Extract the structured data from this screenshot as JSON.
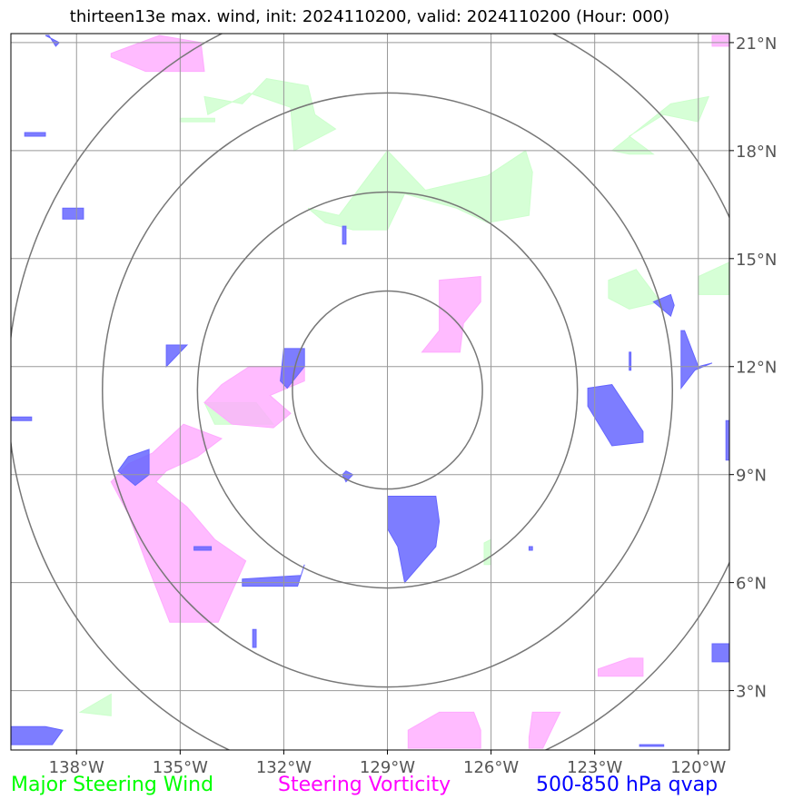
{
  "title": "thirteen13e max. wind, init: 2024110200, valid: 2024110200 (Hour: 000)",
  "legend": [
    {
      "label": "Major Steering Wind",
      "color": "#00ff00"
    },
    {
      "label": "Steering Vorticity",
      "color": "#ff00ff"
    },
    {
      "label": "500-850 hPa qvap",
      "color": "#0000ff"
    }
  ],
  "colors": {
    "wind_fill": "#ccffcc",
    "vorticity_fill": "#ffaaff",
    "qvap_fill": "#6666ff",
    "grid": "#999999",
    "range_ring": "#777777"
  },
  "chart_data": {
    "type": "map",
    "projection": "plate carree",
    "xlim": [
      -139.9,
      -119.1
    ],
    "ylim": [
      1.35,
      21.25
    ],
    "x_ticks": [
      -138,
      -135,
      -132,
      -129,
      -126,
      -123,
      -120
    ],
    "x_tick_labels": [
      "138°W",
      "135°W",
      "132°W",
      "129°W",
      "126°W",
      "123°W",
      "120°W"
    ],
    "y_ticks": [
      3,
      6,
      9,
      12,
      15,
      18,
      21
    ],
    "y_tick_labels": [
      "3°N",
      "6°N",
      "9°N",
      "12°N",
      "15°N",
      "18°N",
      "21°N"
    ],
    "grid": true,
    "storm_center": {
      "lon": -129.0,
      "lat": 11.35
    },
    "range_rings_deg": [
      2.75,
      5.5,
      8.25,
      11.0
    ],
    "series": [
      {
        "name": "Major Steering Wind",
        "regions": [
          [
            [
              -134.3,
              19.5
            ],
            [
              -133.2,
              19.3
            ],
            [
              -132.5,
              20.0
            ],
            [
              -131.3,
              19.8
            ],
            [
              -131.1,
              19.0
            ],
            [
              -130.5,
              18.6
            ],
            [
              -131.7,
              18.0
            ],
            [
              -131.8,
              19.2
            ],
            [
              -133.0,
              19.6
            ],
            [
              -134.2,
              19.0
            ]
          ],
          [
            [
              -135.0,
              18.9
            ],
            [
              -134.0,
              18.9
            ],
            [
              -134.0,
              18.8
            ],
            [
              -135.0,
              18.8
            ]
          ],
          [
            [
              -131.3,
              16.4
            ],
            [
              -130.4,
              16.2
            ],
            [
              -129.0,
              18.0
            ],
            [
              -127.9,
              16.9
            ],
            [
              -126.1,
              17.3
            ],
            [
              -125.0,
              18.0
            ],
            [
              -124.8,
              17.4
            ],
            [
              -124.9,
              16.2
            ],
            [
              -126.1,
              16.0
            ],
            [
              -127.0,
              16.4
            ],
            [
              -128.5,
              16.8
            ],
            [
              -129.0,
              15.8
            ],
            [
              -130.0,
              15.8
            ],
            [
              -130.8,
              16.0
            ]
          ],
          [
            [
              -122.5,
              18.0
            ],
            [
              -120.8,
              19.3
            ],
            [
              -119.7,
              19.5
            ],
            [
              -120.0,
              18.8
            ],
            [
              -121.0,
              19.0
            ],
            [
              -122.0,
              18.4
            ],
            [
              -121.3,
              17.9
            ],
            [
              -122.0,
              17.9
            ]
          ],
          [
            [
              -122.6,
              14.4
            ],
            [
              -121.8,
              14.7
            ],
            [
              -121.1,
              13.8
            ],
            [
              -122.0,
              13.6
            ],
            [
              -122.6,
              13.9
            ]
          ],
          [
            [
              -120.0,
              14.5
            ],
            [
              -119.1,
              14.9
            ],
            [
              -119.1,
              14.0
            ],
            [
              -120.0,
              14.0
            ]
          ],
          [
            [
              -134.3,
              11.0
            ],
            [
              -132.8,
              11.0
            ],
            [
              -132.3,
              10.4
            ],
            [
              -134.0,
              10.4
            ]
          ],
          [
            [
              -137.9,
              2.4
            ],
            [
              -137.0,
              2.9
            ],
            [
              -137.0,
              2.3
            ]
          ],
          [
            [
              -126.2,
              7.1
            ],
            [
              -126.0,
              7.2
            ],
            [
              -126.0,
              6.5
            ],
            [
              -126.2,
              6.5
            ]
          ]
        ]
      },
      {
        "name": "Steering Vorticity",
        "regions": [
          [
            [
              -137.0,
              20.7
            ],
            [
              -135.6,
              21.2
            ],
            [
              -134.4,
              21.0
            ],
            [
              -134.3,
              20.2
            ],
            [
              -136.0,
              20.2
            ],
            [
              -137.0,
              20.6
            ]
          ],
          [
            [
              -119.6,
              21.2
            ],
            [
              -119.1,
              21.2
            ],
            [
              -119.1,
              20.9
            ],
            [
              -119.6,
              20.9
            ]
          ],
          [
            [
              -127.5,
              13.0
            ],
            [
              -127.5,
              14.4
            ],
            [
              -126.3,
              14.5
            ],
            [
              -126.3,
              13.8
            ],
            [
              -126.8,
              13.2
            ],
            [
              -126.9,
              12.4
            ],
            [
              -128.0,
              12.4
            ]
          ],
          [
            [
              -133.0,
              12.0
            ],
            [
              -131.4,
              12.0
            ],
            [
              -131.4,
              11.6
            ],
            [
              -132.4,
              11.2
            ],
            [
              -131.8,
              10.7
            ],
            [
              -132.3,
              10.3
            ],
            [
              -133.5,
              10.4
            ],
            [
              -134.3,
              11.0
            ],
            [
              -133.8,
              11.5
            ]
          ],
          [
            [
              -134.9,
              10.4
            ],
            [
              -133.8,
              10.0
            ],
            [
              -134.5,
              9.5
            ],
            [
              -135.4,
              9.1
            ],
            [
              -135.7,
              8.8
            ],
            [
              -134.8,
              8.1
            ],
            [
              -134.0,
              7.2
            ],
            [
              -133.1,
              6.6
            ],
            [
              -133.9,
              4.9
            ],
            [
              -135.3,
              4.9
            ],
            [
              -136.0,
              6.6
            ],
            [
              -136.5,
              7.9
            ],
            [
              -137.0,
              8.8
            ],
            [
              -136.5,
              9.3
            ],
            [
              -135.8,
              9.6
            ]
          ],
          [
            [
              -122.9,
              3.6
            ],
            [
              -122.0,
              3.9
            ],
            [
              -121.6,
              3.9
            ],
            [
              -121.6,
              3.4
            ],
            [
              -122.9,
              3.4
            ]
          ],
          [
            [
              -128.4,
              1.9
            ],
            [
              -127.5,
              2.4
            ],
            [
              -126.5,
              2.4
            ],
            [
              -126.3,
              1.9
            ],
            [
              -126.3,
              1.4
            ],
            [
              -128.4,
              1.4
            ]
          ],
          [
            [
              -124.9,
              1.7
            ],
            [
              -124.8,
              2.4
            ],
            [
              -124.0,
              2.4
            ],
            [
              -124.5,
              1.4
            ],
            [
              -124.9,
              1.4
            ]
          ]
        ]
      },
      {
        "name": "500-850 hPa qvap",
        "regions": [
          [
            [
              -138.9,
              21.2
            ],
            [
              -138.5,
              21.0
            ],
            [
              -138.6,
              20.9
            ],
            [
              -138.8,
              21.2
            ]
          ],
          [
            [
              -139.5,
              18.5
            ],
            [
              -138.9,
              18.5
            ],
            [
              -138.9,
              18.4
            ],
            [
              -139.5,
              18.4
            ]
          ],
          [
            [
              -138.4,
              16.4
            ],
            [
              -137.8,
              16.4
            ],
            [
              -137.8,
              16.1
            ],
            [
              -138.4,
              16.1
            ]
          ],
          [
            [
              -135.4,
              12.6
            ],
            [
              -134.8,
              12.6
            ],
            [
              -135.4,
              12.0
            ]
          ],
          [
            [
              -132.0,
              12.5
            ],
            [
              -131.4,
              12.5
            ],
            [
              -131.4,
              12.0
            ],
            [
              -131.9,
              11.4
            ],
            [
              -132.1,
              11.6
            ]
          ],
          [
            [
              -130.3,
              15.9
            ],
            [
              -130.2,
              15.9
            ],
            [
              -130.2,
              15.4
            ],
            [
              -130.3,
              15.4
            ]
          ],
          [
            [
              -121.3,
              13.8
            ],
            [
              -120.8,
              14.0
            ],
            [
              -120.7,
              13.7
            ],
            [
              -120.8,
              13.4
            ]
          ],
          [
            [
              -120.5,
              13.0
            ],
            [
              -120.4,
              13.0
            ],
            [
              -120.0,
              12.0
            ],
            [
              -119.6,
              12.1
            ],
            [
              -120.1,
              11.9
            ],
            [
              -120.5,
              11.4
            ]
          ],
          [
            [
              -123.2,
              11.4
            ],
            [
              -122.5,
              11.5
            ],
            [
              -121.6,
              10.2
            ],
            [
              -121.6,
              9.9
            ],
            [
              -122.5,
              9.8
            ],
            [
              -123.2,
              10.9
            ]
          ],
          [
            [
              -136.5,
              9.5
            ],
            [
              -135.9,
              9.7
            ],
            [
              -135.9,
              9.0
            ],
            [
              -136.3,
              8.7
            ],
            [
              -136.8,
              9.1
            ]
          ],
          [
            [
              -129.0,
              8.4
            ],
            [
              -127.6,
              8.4
            ],
            [
              -127.5,
              7.7
            ],
            [
              -127.6,
              7.0
            ],
            [
              -128.5,
              6.0
            ],
            [
              -128.7,
              7.0
            ],
            [
              -129.0,
              7.5
            ]
          ],
          [
            [
              -130.2,
              9.1
            ],
            [
              -130.0,
              9.0
            ],
            [
              -130.2,
              8.8
            ],
            [
              -130.3,
              9.0
            ]
          ],
          [
            [
              -133.2,
              6.1
            ],
            [
              -131.5,
              6.2
            ],
            [
              -131.4,
              6.5
            ],
            [
              -131.6,
              5.9
            ],
            [
              -133.2,
              5.9
            ]
          ],
          [
            [
              -134.6,
              7.0
            ],
            [
              -134.1,
              7.0
            ],
            [
              -134.1,
              6.9
            ],
            [
              -134.6,
              6.9
            ]
          ],
          [
            [
              -132.9,
              4.7
            ],
            [
              -132.8,
              4.7
            ],
            [
              -132.8,
              4.2
            ],
            [
              -132.9,
              4.2
            ]
          ],
          [
            [
              -139.9,
              2.0
            ],
            [
              -138.9,
              2.0
            ],
            [
              -138.4,
              1.9
            ],
            [
              -138.7,
              1.5
            ],
            [
              -139.9,
              1.5
            ]
          ],
          [
            [
              -139.9,
              10.6
            ],
            [
              -139.3,
              10.6
            ],
            [
              -139.3,
              10.5
            ],
            [
              -139.9,
              10.5
            ]
          ],
          [
            [
              -119.6,
              4.3
            ],
            [
              -119.1,
              4.3
            ],
            [
              -119.1,
              3.8
            ],
            [
              -119.6,
              3.8
            ]
          ],
          [
            [
              -121.7,
              1.5
            ],
            [
              -121.0,
              1.5
            ],
            [
              -121.0,
              1.45
            ],
            [
              -121.7,
              1.45
            ]
          ],
          [
            [
              -124.9,
              7.0
            ],
            [
              -124.8,
              7.0
            ],
            [
              -124.8,
              6.9
            ],
            [
              -124.9,
              6.9
            ]
          ],
          [
            [
              -119.2,
              10.5
            ],
            [
              -119.1,
              10.5
            ],
            [
              -119.1,
              9.4
            ],
            [
              -119.2,
              9.4
            ]
          ],
          [
            [
              -122.0,
              12.4
            ],
            [
              -121.95,
              12.4
            ],
            [
              -121.95,
              11.9
            ],
            [
              -122.0,
              11.9
            ]
          ]
        ]
      }
    ]
  }
}
